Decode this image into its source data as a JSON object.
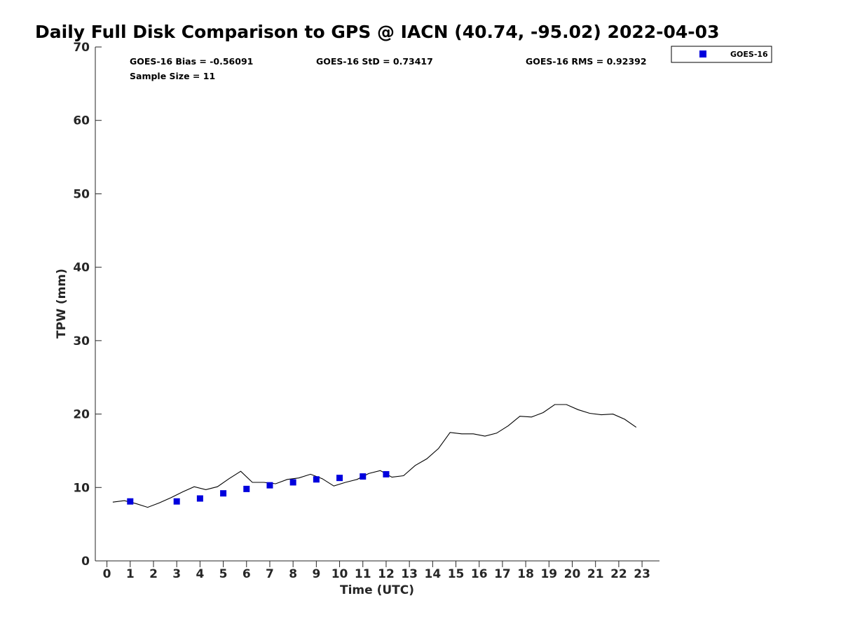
{
  "chart_data": {
    "type": "scatter",
    "title": "Daily Full Disk Comparison to GPS @ IACN (40.74, -95.02) 2022-04-03",
    "xlabel": "Time (UTC)",
    "ylabel": "TPW (mm)",
    "xlim": [
      -0.5,
      23.75
    ],
    "ylim": [
      0,
      70
    ],
    "x_ticks": [
      0,
      1,
      2,
      3,
      4,
      5,
      6,
      7,
      8,
      9,
      10,
      11,
      12,
      13,
      14,
      15,
      16,
      17,
      18,
      19,
      20,
      21,
      22,
      23
    ],
    "y_ticks": [
      0,
      10,
      20,
      30,
      40,
      50,
      60,
      70
    ],
    "grid": false,
    "legend_position": "top-right",
    "stats": {
      "bias": "GOES-16 Bias = -0.56091",
      "std": "GOES-16 StD = 0.73417",
      "rms": "GOES-16 RMS = 0.92392",
      "sample": "Sample Size = 11"
    },
    "series": [
      {
        "type": "line",
        "color": "#000000",
        "x": [
          0.25,
          0.75,
          1.25,
          1.75,
          2.25,
          2.75,
          3.25,
          3.75,
          4.25,
          4.75,
          5.25,
          5.75,
          6.25,
          6.75,
          7.25,
          7.75,
          8.25,
          8.75,
          9.25,
          9.75,
          10.25,
          10.75,
          11.25,
          11.75,
          12.25,
          12.75,
          13.25,
          13.75,
          14.25,
          14.75,
          15.25,
          15.75,
          16.25,
          16.75,
          17.25,
          17.75,
          18.25,
          18.75,
          19.25,
          19.75,
          20.25,
          20.75,
          21.25,
          21.75,
          22.25,
          22.75
        ],
        "values": [
          8.0,
          8.2,
          7.8,
          7.3,
          7.9,
          8.6,
          9.4,
          10.1,
          9.7,
          10.1,
          11.2,
          12.2,
          10.7,
          10.7,
          10.5,
          11.1,
          11.3,
          11.8,
          11.2,
          10.2,
          10.7,
          11.1,
          11.9,
          12.3,
          11.4,
          11.6,
          13.0,
          13.9,
          15.3,
          17.5,
          17.3,
          17.3,
          17.0,
          17.4,
          18.4,
          19.7,
          19.6,
          20.2,
          21.3,
          21.3,
          20.6,
          20.1,
          19.9,
          20.0,
          19.3,
          18.2
        ]
      },
      {
        "name": "GOES-16",
        "type": "scatter",
        "marker": "square",
        "color": "#0000dd",
        "x": [
          1,
          3,
          4,
          5,
          6,
          7,
          8,
          9,
          10,
          11,
          12
        ],
        "values": [
          8.1,
          8.1,
          8.5,
          9.2,
          9.8,
          10.3,
          10.7,
          11.1,
          11.3,
          11.5,
          11.8
        ]
      }
    ]
  }
}
